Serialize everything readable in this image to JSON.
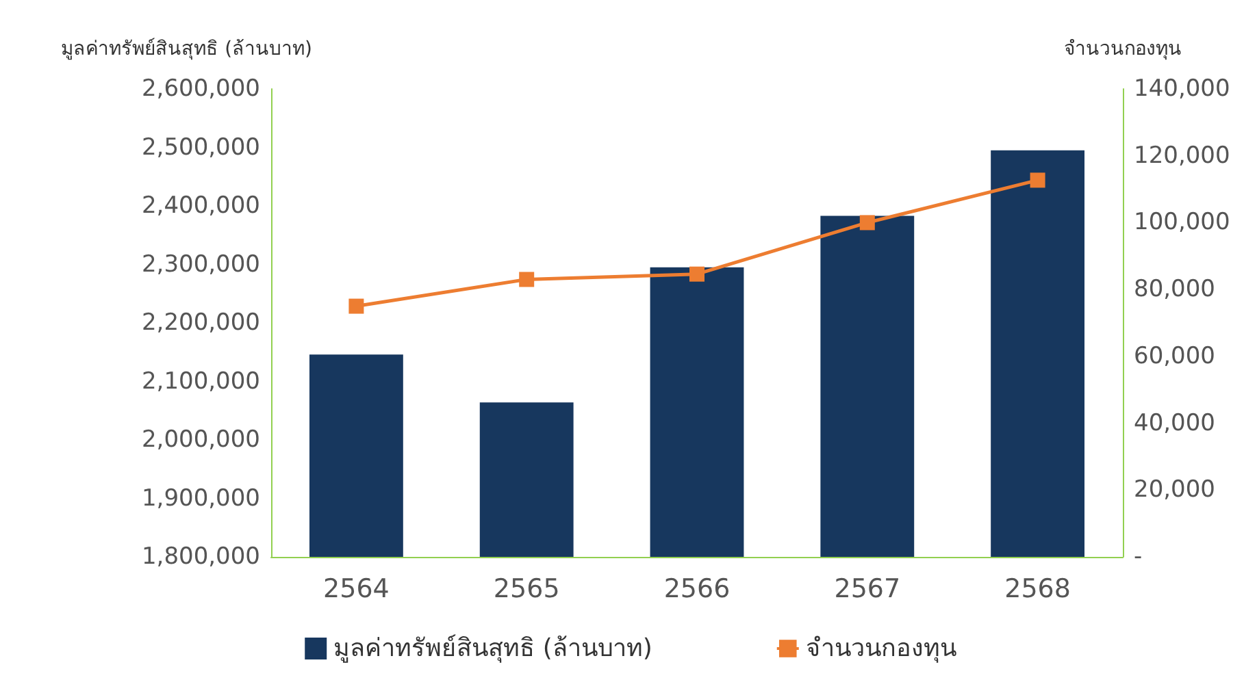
{
  "chart_data": {
    "type": "bar",
    "categories": [
      "2564",
      "2565",
      "2566",
      "2567",
      "2568"
    ],
    "ylabel": "มูลค่าทรัพย์สินสุทธิ (ล้านบาท)",
    "y2label": "จำนวนกองทุน",
    "series": [
      {
        "name": "มูลค่าทรัพย์สินสุทธิ (ล้านบาท)",
        "color": "#17375e",
        "values": [
          2146000,
          2064000,
          2295000,
          2383000,
          2495000
        ]
      },
      {
        "name": "จำนวนกองทุน",
        "type": "line",
        "axis": "y2",
        "color": "#ed7d31",
        "marker": "square",
        "values": [
          75000,
          83000,
          84600,
          100000,
          112700
        ]
      }
    ],
    "ylim": [
      1800000,
      2600000
    ],
    "yticks": [
      {
        "value": 1800000,
        "label": "1,800,000"
      },
      {
        "value": 1900000,
        "label": "1,900,000"
      },
      {
        "value": 2000000,
        "label": "2,000,000"
      },
      {
        "value": 2100000,
        "label": "2,100,000"
      },
      {
        "value": 2200000,
        "label": "2,200,000"
      },
      {
        "value": 2300000,
        "label": "2,300,000"
      },
      {
        "value": 2400000,
        "label": "2,400,000"
      },
      {
        "value": 2500000,
        "label": "2,500,000"
      },
      {
        "value": 2600000,
        "label": "2,600,000"
      }
    ],
    "y2lim": [
      0,
      140000
    ],
    "y2ticks": [
      {
        "value": 0,
        "label": "-"
      },
      {
        "value": 20000,
        "label": "20,000"
      },
      {
        "value": 40000,
        "label": "40,000"
      },
      {
        "value": 60000,
        "label": "60,000"
      },
      {
        "value": 80000,
        "label": "80,000"
      },
      {
        "value": 100000,
        "label": "100,000"
      },
      {
        "value": 120000,
        "label": "120,000"
      },
      {
        "value": 140000,
        "label": "140,000"
      }
    ],
    "grid": false,
    "legend": "bottom"
  }
}
